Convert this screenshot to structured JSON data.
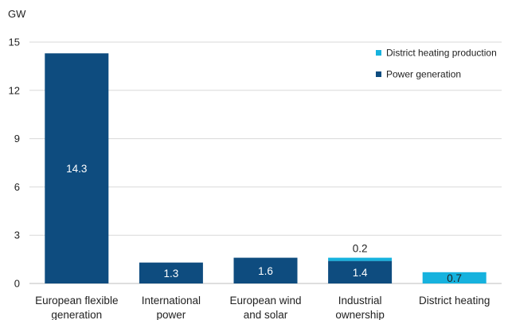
{
  "chart_data": {
    "type": "bar",
    "stacked": true,
    "unit": "GW",
    "ylim": [
      0,
      15
    ],
    "yticks": [
      0,
      3,
      6,
      9,
      12,
      15
    ],
    "grid": true,
    "legend_position": "top-right",
    "categories": [
      [
        "European flexible",
        "generation"
      ],
      [
        "International",
        "power"
      ],
      [
        "European wind",
        "and solar"
      ],
      [
        "Industrial",
        "ownership"
      ],
      [
        "District heating"
      ]
    ],
    "series": [
      {
        "name": "Power generation",
        "color": "#0e4c7f",
        "values": [
          14.3,
          1.3,
          1.6,
          1.4,
          0
        ]
      },
      {
        "name": "District heating production",
        "color": "#16b2de",
        "values": [
          0,
          0,
          0,
          0.2,
          0.7
        ]
      }
    ],
    "data_labels": [
      {
        "category": 0,
        "series": 0,
        "text": "14.3",
        "position": "inside",
        "color": "#ffffff"
      },
      {
        "category": 1,
        "series": 0,
        "text": "1.3",
        "position": "inside",
        "color": "#ffffff"
      },
      {
        "category": 2,
        "series": 0,
        "text": "1.6",
        "position": "inside",
        "color": "#ffffff"
      },
      {
        "category": 3,
        "series": 0,
        "text": "1.4",
        "position": "inside",
        "color": "#ffffff"
      },
      {
        "category": 3,
        "series": 1,
        "text": "0.2",
        "position": "above",
        "color": "#222222"
      },
      {
        "category": 4,
        "series": 1,
        "text": "0.7",
        "position": "inside",
        "color": "#222222"
      }
    ],
    "legend_order": [
      1,
      0
    ]
  }
}
